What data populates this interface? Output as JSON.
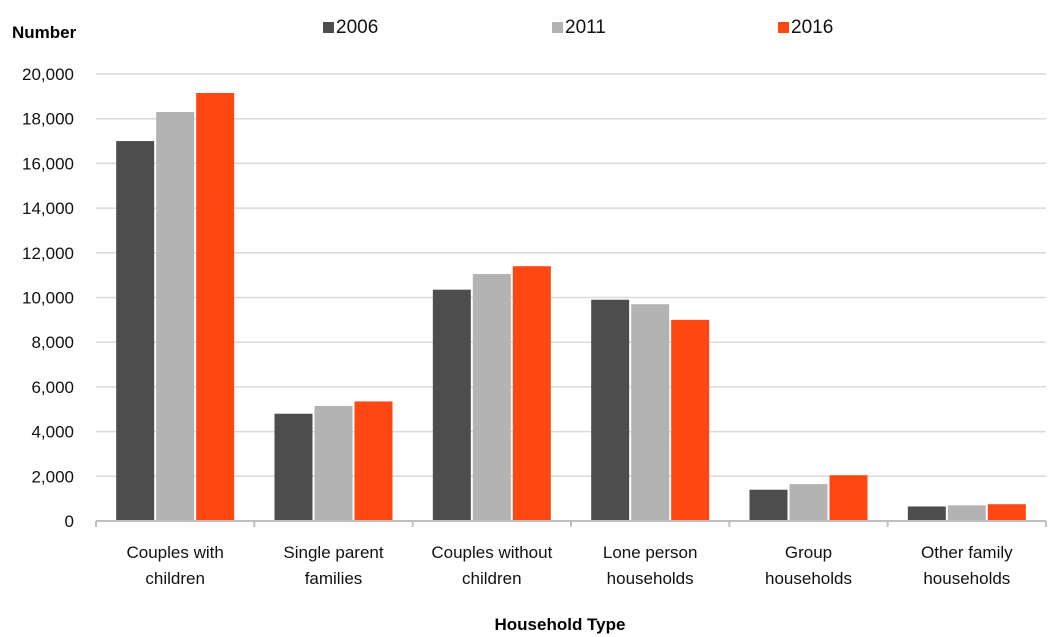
{
  "chart_data": {
    "type": "bar",
    "title": "",
    "ylabel": "Number",
    "xlabel": "Household Type",
    "ylim": [
      0,
      20000
    ],
    "y_ticks": [
      "20,000",
      "18,000",
      "16,000",
      "14,000",
      "12,000",
      "10,000",
      "8,000",
      "6,000",
      "4,000",
      "2,000",
      "0"
    ],
    "y_tick_values": [
      20000,
      18000,
      16000,
      14000,
      12000,
      10000,
      8000,
      6000,
      4000,
      2000,
      0
    ],
    "grid": true,
    "legend_position": "top",
    "categories": [
      [
        "Couples with",
        "children"
      ],
      [
        "Single parent",
        "families"
      ],
      [
        "Couples without",
        "children"
      ],
      [
        "Lone person",
        "households"
      ],
      [
        "Group",
        "households"
      ],
      [
        "Other family",
        "households"
      ]
    ],
    "series": [
      {
        "name": "2006",
        "color": "#4d4d4d",
        "values": [
          17000,
          4800,
          10350,
          9900,
          1400,
          650
        ]
      },
      {
        "name": "2011",
        "color": "#b3b3b3",
        "values": [
          18300,
          5150,
          11050,
          9700,
          1650,
          700
        ]
      },
      {
        "name": "2016",
        "color": "#ff4713",
        "values": [
          19150,
          5350,
          11400,
          9000,
          2050,
          750
        ]
      }
    ]
  }
}
